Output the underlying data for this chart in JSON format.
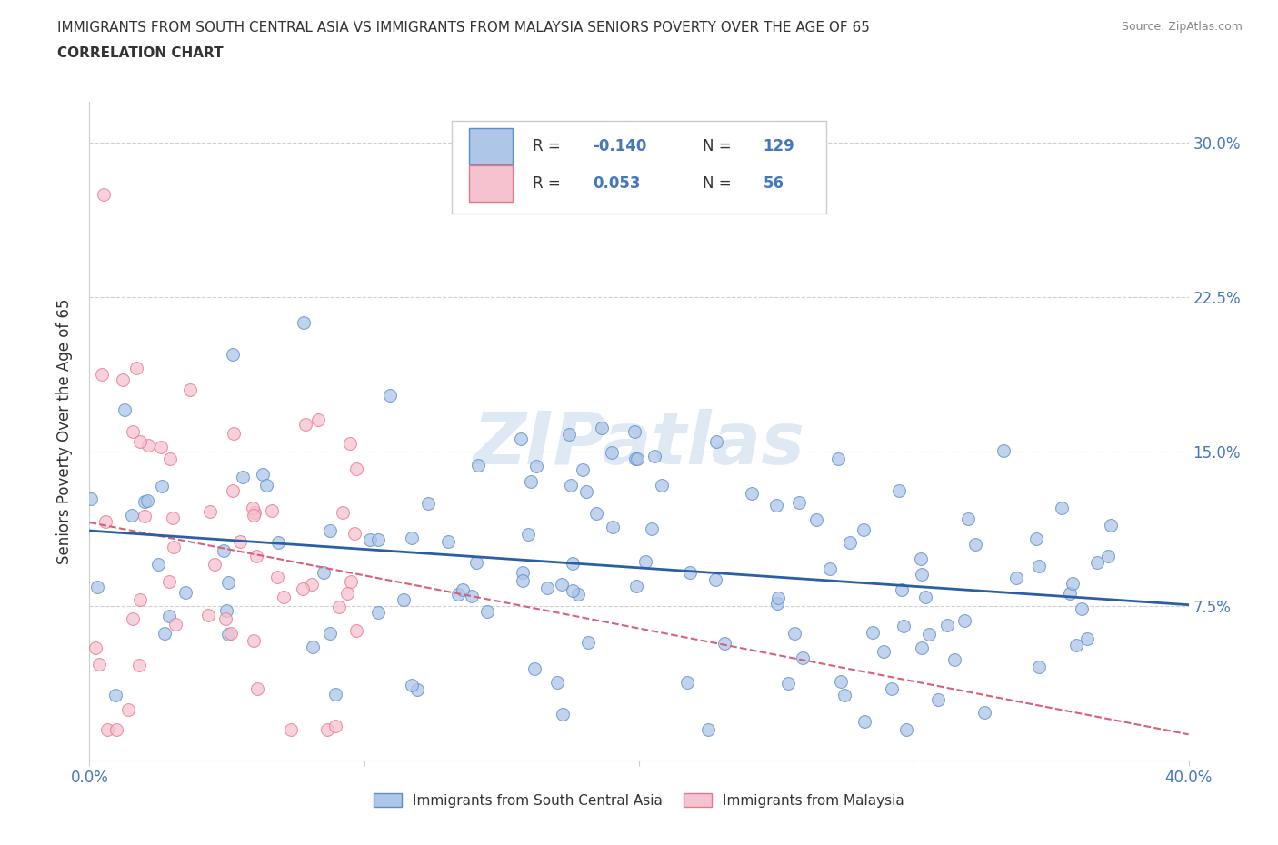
{
  "title_line1": "IMMIGRANTS FROM SOUTH CENTRAL ASIA VS IMMIGRANTS FROM MALAYSIA SENIORS POVERTY OVER THE AGE OF 65",
  "title_line2": "CORRELATION CHART",
  "source": "Source: ZipAtlas.com",
  "ylabel": "Seniors Poverty Over the Age of 65",
  "xlim": [
    0.0,
    0.4
  ],
  "ylim": [
    0.0,
    0.32
  ],
  "xtick_values": [
    0.0,
    0.1,
    0.2,
    0.3,
    0.4
  ],
  "xtick_labels": [
    "0.0%",
    "",
    "",
    "",
    "40.0%"
  ],
  "ytick_values": [
    0.075,
    0.15,
    0.225,
    0.3
  ],
  "ytick_labels": [
    "7.5%",
    "15.0%",
    "22.5%",
    "30.0%"
  ],
  "blue_color": "#aec6e8",
  "blue_edge_color": "#5b8fc9",
  "pink_color": "#f5c2cf",
  "pink_edge_color": "#e8788a",
  "trend_blue_color": "#2b5fa5",
  "trend_pink_color": "#d95f7a",
  "R_blue": -0.14,
  "N_blue": 129,
  "R_pink": 0.053,
  "N_pink": 56,
  "legend_label_blue": "Immigrants from South Central Asia",
  "legend_label_pink": "Immigrants from Malaysia",
  "watermark": "ZIPatlas",
  "watermark_color": "#c5d8ec",
  "grid_color": "#d0d0d0",
  "axis_color": "#cccccc",
  "label_color": "#4477bb",
  "text_color": "#333333"
}
